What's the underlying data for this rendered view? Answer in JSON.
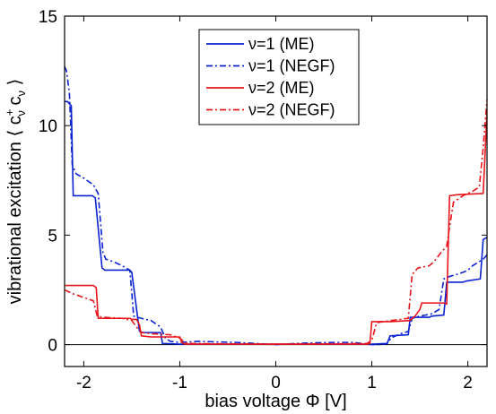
{
  "chart_data": {
    "type": "line",
    "xlabel": "bias voltage Φ [V]",
    "ylabel": "vibrational excitation ⟨ c⁺ν cν ⟩",
    "ylabel_parts": {
      "prefix": "vibrational excitation ⟨ c",
      "sup": "+",
      "sub1": "ν",
      "mid": " c",
      "sub2": "ν",
      "suffix": " ⟩"
    },
    "xlim": [
      -2.2,
      2.2
    ],
    "ylim": [
      -1,
      15
    ],
    "xticks": [
      -2,
      -1,
      0,
      1,
      2
    ],
    "xtick_labels": [
      "-2",
      "-1",
      "0",
      "1",
      "2"
    ],
    "yticks": [
      0,
      5,
      10,
      15
    ],
    "ytick_labels": [
      "0",
      "5",
      "10",
      "15"
    ],
    "grid": false,
    "legend_position": "top-center",
    "zero_line": true,
    "series": [
      {
        "name": "ν=1 (ME)",
        "color": "#0a22d0",
        "dash": "solid",
        "x": [
          -2.2,
          -2.17,
          -2.13,
          -2.11,
          -1.91,
          -1.88,
          -1.81,
          -1.78,
          -1.52,
          -1.5,
          -1.42,
          -1.38,
          -1.2,
          -1.18,
          -1.0,
          -0.5,
          0,
          0.5,
          1.0,
          1.16,
          1.19,
          1.38,
          1.4,
          1.6,
          1.62,
          1.75,
          1.78,
          1.95,
          1.98,
          2.13,
          2.16,
          2.2
        ],
        "y": [
          11.1,
          11.1,
          10.9,
          6.8,
          6.8,
          6.7,
          3.5,
          3.4,
          3.4,
          3.3,
          0.6,
          0.55,
          0.55,
          0.05,
          0.02,
          0.02,
          0.02,
          0.02,
          0.02,
          0.05,
          0.4,
          0.45,
          1.25,
          1.25,
          1.3,
          1.35,
          2.85,
          2.85,
          2.9,
          3.0,
          4.8,
          4.9
        ]
      },
      {
        "name": "ν=1 (NEGF)",
        "color": "#0a22d0",
        "dash": "dashdot",
        "x": [
          -2.2,
          -2.18,
          -2.15,
          -2.12,
          -2.08,
          -2.0,
          -1.9,
          -1.85,
          -1.8,
          -1.77,
          -1.7,
          -1.6,
          -1.52,
          -1.48,
          -1.4,
          -1.3,
          -1.2,
          -1.15,
          -1.1,
          -1.0,
          -0.8,
          -0.6,
          -0.4,
          -0.2,
          0,
          0.2,
          0.4,
          0.6,
          0.8,
          1.0,
          1.1,
          1.16,
          1.2,
          1.3,
          1.38,
          1.42,
          1.5,
          1.62,
          1.7,
          1.75,
          1.8,
          1.88,
          1.95,
          2.0,
          2.05,
          2.12,
          2.16,
          2.2
        ],
        "y": [
          12.7,
          12.5,
          11.5,
          8.2,
          7.8,
          7.6,
          7.3,
          6.9,
          4.2,
          3.9,
          3.8,
          3.6,
          3.4,
          1.3,
          1.2,
          1.1,
          0.8,
          0.3,
          0.15,
          0.1,
          0.15,
          0.12,
          0.1,
          0.05,
          0.0,
          0.05,
          0.08,
          0.1,
          0.1,
          0.0,
          0.0,
          0.05,
          0.3,
          0.5,
          0.6,
          1.2,
          1.3,
          1.4,
          1.6,
          3.0,
          3.1,
          3.2,
          3.3,
          3.4,
          3.6,
          3.8,
          3.9,
          4.1
        ]
      },
      {
        "name": "ν=2 (ME)",
        "color": "#e8141a",
        "dash": "solid",
        "x": [
          -2.2,
          -1.9,
          -1.87,
          -1.85,
          -1.52,
          -1.5,
          -1.45,
          -1.42,
          -1.4,
          -1.3,
          -1.0,
          -0.98,
          -0.95,
          -0.5,
          0,
          0.5,
          0.95,
          0.98,
          1.0,
          1.2,
          1.4,
          1.42,
          1.45,
          1.5,
          1.52,
          1.7,
          1.75,
          1.78,
          1.81,
          1.9,
          2.16,
          2.2
        ],
        "y": [
          2.7,
          2.7,
          2.6,
          1.2,
          1.2,
          1.15,
          1.15,
          0.9,
          0.4,
          0.35,
          0.35,
          0.1,
          0.02,
          0.02,
          0.02,
          0.02,
          0.02,
          0.05,
          1.05,
          1.05,
          1.1,
          1.2,
          1.3,
          1.6,
          1.9,
          1.9,
          1.9,
          1.85,
          6.8,
          6.85,
          6.9,
          10.6
        ]
      },
      {
        "name": "ν=2 (NEGF)",
        "color": "#e8141a",
        "dash": "dashdot",
        "x": [
          -2.2,
          -2.1,
          -2.0,
          -1.9,
          -1.86,
          -1.8,
          -1.6,
          -1.5,
          -1.45,
          -1.4,
          -1.3,
          -1.1,
          -1.0,
          -0.95,
          -0.9,
          -0.5,
          0,
          0.5,
          0.95,
          1.0,
          1.05,
          1.2,
          1.38,
          1.42,
          1.48,
          1.6,
          1.65,
          1.72,
          1.78,
          1.85,
          1.95,
          2.05,
          2.12,
          2.16,
          2.2
        ],
        "y": [
          2.5,
          2.3,
          2.15,
          2.0,
          1.3,
          1.25,
          1.2,
          1.1,
          0.8,
          0.55,
          0.5,
          0.45,
          0.3,
          0.1,
          0.05,
          0.03,
          0.02,
          0.03,
          0.05,
          0.2,
          1.0,
          1.1,
          1.2,
          3.2,
          3.5,
          3.6,
          3.8,
          4.2,
          4.5,
          6.5,
          6.8,
          7.0,
          7.2,
          9.0,
          11.2
        ]
      }
    ]
  }
}
